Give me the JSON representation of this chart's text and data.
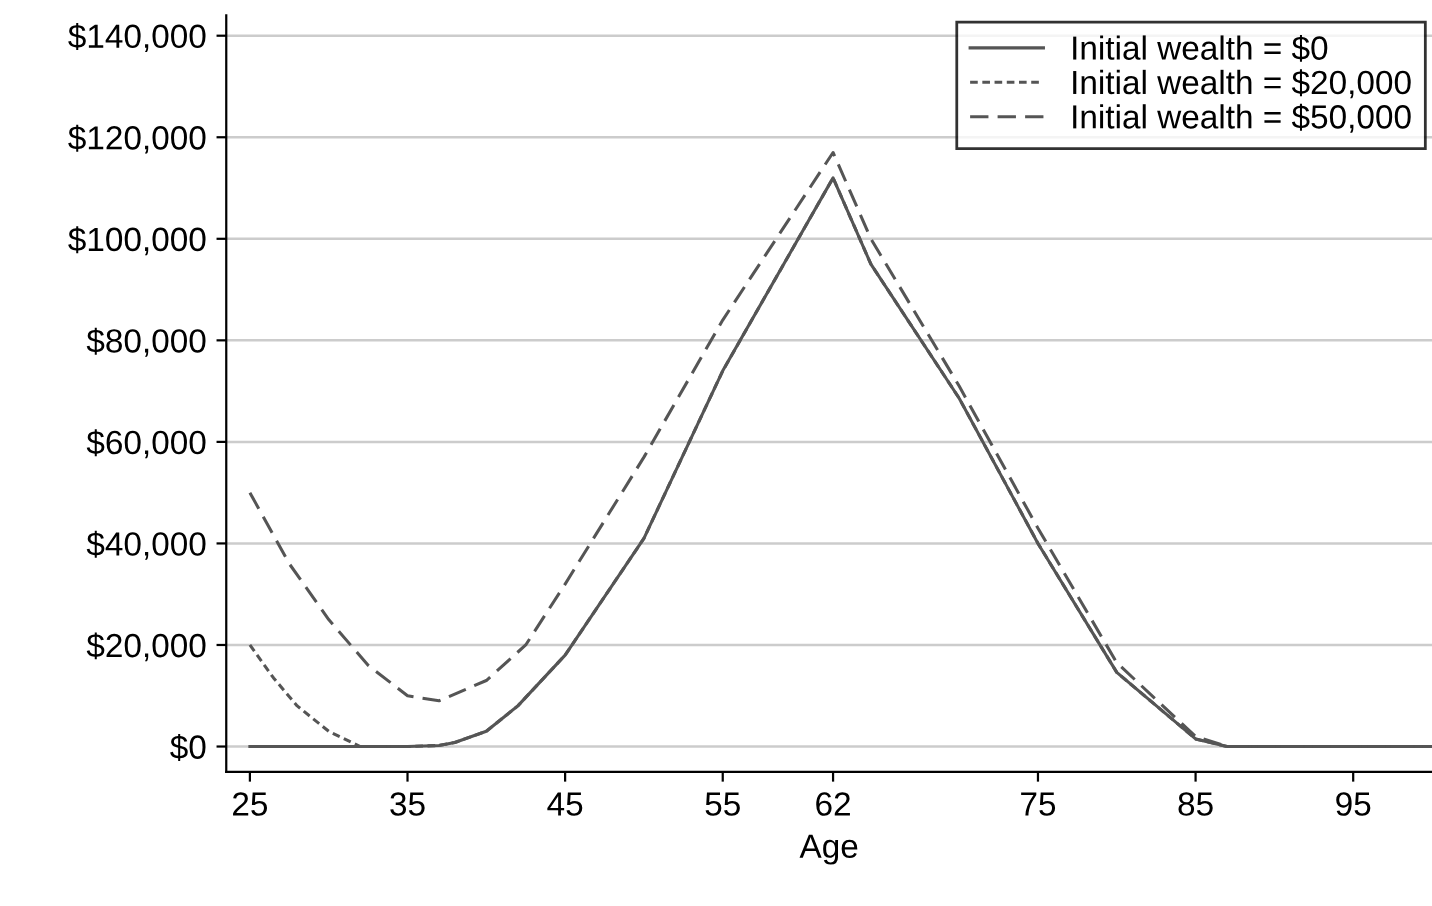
{
  "chart_data": {
    "type": "line",
    "xlabel": "Age",
    "xlim": [
      23.5,
      100
    ],
    "xticks": [
      25,
      35,
      45,
      55,
      62,
      75,
      85,
      95
    ],
    "ylim": [
      -5000,
      144000
    ],
    "yticks": [
      {
        "value": 0,
        "label": "$0"
      },
      {
        "value": 20000,
        "label": "$20,000"
      },
      {
        "value": 40000,
        "label": "$40,000"
      },
      {
        "value": 60000,
        "label": "$60,000"
      },
      {
        "value": 80000,
        "label": "$80,000"
      },
      {
        "value": 100000,
        "label": "$100,000"
      },
      {
        "value": 120000,
        "label": "$120,000"
      },
      {
        "value": 140000,
        "label": "$140,000"
      }
    ],
    "grid": "y",
    "legend": "top right",
    "series": [
      {
        "name": "Initial wealth = $0",
        "color": "#555555",
        "line_style": "solid",
        "x": [
          25,
          30,
          35,
          37,
          38,
          40,
          42,
          45,
          50,
          55,
          62,
          64.4,
          70,
          75,
          80,
          85,
          87,
          100
        ],
        "values": [
          0,
          0,
          0,
          200,
          800,
          3000,
          8000,
          18000,
          41000,
          74000,
          112000,
          95000,
          68600,
          40000,
          14600,
          1500,
          0,
          0
        ]
      },
      {
        "name": "Initial wealth = $20,000",
        "color": "#555555",
        "line_style": "dotted",
        "x": [
          25,
          26.5,
          28,
          30,
          32,
          35,
          37,
          38,
          40,
          42,
          45,
          50,
          55,
          62,
          64.4,
          70,
          75,
          80,
          85,
          87,
          100
        ],
        "values": [
          20000,
          13500,
          8000,
          3000,
          0,
          0,
          200,
          800,
          3000,
          8000,
          18000,
          41000,
          74000,
          112000,
          95000,
          68600,
          40000,
          14600,
          1500,
          0,
          0
        ]
      },
      {
        "name": "Initial wealth = $50,000",
        "color": "#555555",
        "line_style": "dashed",
        "x": [
          25,
          27.5,
          30,
          32.5,
          35,
          37,
          40,
          42.5,
          45,
          50,
          55,
          62,
          64.4,
          70,
          75,
          80,
          85,
          87,
          100
        ],
        "values": [
          50000,
          36000,
          25000,
          16000,
          10000,
          9000,
          13000,
          20000,
          32000,
          57000,
          84000,
          117000,
          100000,
          71000,
          43000,
          16500,
          2000,
          0,
          0
        ]
      }
    ]
  }
}
